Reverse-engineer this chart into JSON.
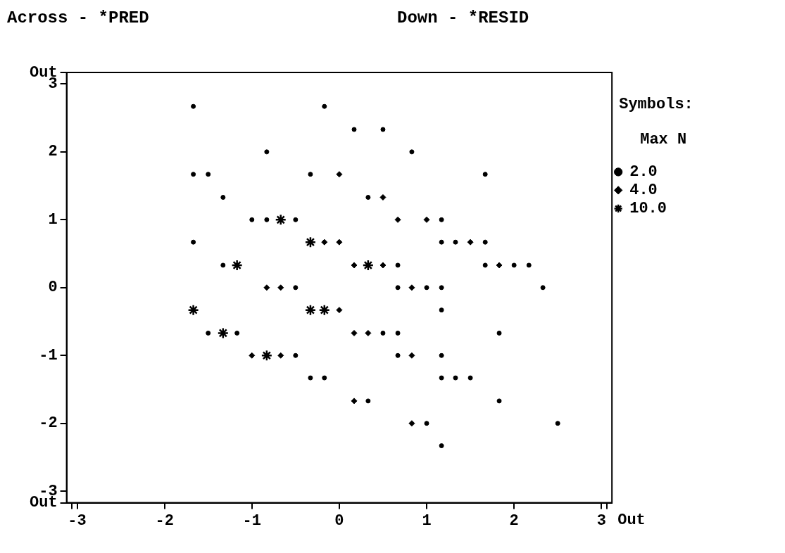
{
  "chart_data": {
    "type": "scatter",
    "title": "Across - *PRED",
    "subtitle": "Down - *RESID",
    "legend_title": "Symbols:",
    "annotations": [
      "Max N",
      "Out"
    ],
    "legend": "right",
    "grid": false,
    "xlim": [
      -3.12,
      3.12
    ],
    "ylim": [
      -3.17,
      3.17
    ],
    "xticks": [
      {
        "value": -3.06,
        "label": null
      },
      -3,
      -2,
      -1,
      0,
      1,
      2,
      3,
      {
        "value": 3.06,
        "label": null
      }
    ],
    "yticks": [
      {
        "value": 3.17,
        "label": "Out"
      },
      3,
      2,
      1,
      0,
      -1,
      -2,
      -3,
      {
        "value": -3.17,
        "label": "Out"
      }
    ],
    "series": [
      {
        "name": "2.0",
        "color": "#000000",
        "marker": "circle",
        "x": [
          -1.67,
          -0.17,
          0.17,
          0.5,
          -0.83,
          0.83,
          -1.67,
          -1.5,
          -0.33,
          1.67,
          -1.33,
          0.33,
          -1,
          -0.83,
          -0.5,
          1.17,
          -1.67,
          1.17,
          1.33,
          1.67,
          -1.33,
          0.67,
          1.67,
          2,
          2.17,
          -0.5,
          0.67,
          1,
          1.17,
          2.33,
          1.17,
          -1.5,
          -1.17,
          0.5,
          0.67,
          1.83,
          -0.5,
          0.67,
          1.17,
          -0.33,
          -0.17,
          1.17,
          1.33,
          1.5,
          0.33,
          1.83,
          1,
          2.5,
          1.17
        ],
        "values": [
          2.67,
          2.67,
          2.33,
          2.33,
          2,
          2,
          1.67,
          1.67,
          1.67,
          1.67,
          1.33,
          1.33,
          1,
          1,
          1,
          1,
          0.67,
          0.67,
          0.67,
          0.67,
          0.33,
          0.33,
          0.33,
          0.33,
          0.33,
          0,
          0,
          0,
          0,
          0,
          -0.33,
          -0.67,
          -0.67,
          -0.67,
          -0.67,
          -0.67,
          -1,
          -1,
          -1,
          -1.33,
          -1.33,
          -1.33,
          -1.33,
          -1.33,
          -1.67,
          -1.67,
          -2,
          -2,
          -2.33
        ]
      },
      {
        "name": "4.0",
        "color": "#000000",
        "marker": "diamond",
        "x": [
          0,
          0.5,
          0.67,
          1,
          -0.17,
          0,
          1.5,
          0.17,
          0.5,
          1.83,
          -0.83,
          -0.67,
          0.83,
          0,
          0.17,
          0.33,
          -1,
          -0.67,
          0.83,
          0.17,
          0.83
        ],
        "values": [
          1.67,
          1.33,
          1,
          1,
          0.67,
          0.67,
          0.67,
          0.33,
          0.33,
          0.33,
          0,
          0,
          0,
          -0.33,
          -0.67,
          -0.67,
          -1,
          -1,
          -1,
          -1.67,
          -2
        ]
      },
      {
        "name": "10.0",
        "color": "#000000",
        "marker": "cross",
        "x": [
          -0.67,
          -0.33,
          -1.17,
          0.33,
          -1.67,
          -0.33,
          -0.17,
          -1.33,
          -0.83
        ],
        "values": [
          1,
          0.67,
          0.33,
          0.33,
          -0.33,
          -0.33,
          -0.33,
          -0.67,
          -1
        ]
      }
    ]
  }
}
